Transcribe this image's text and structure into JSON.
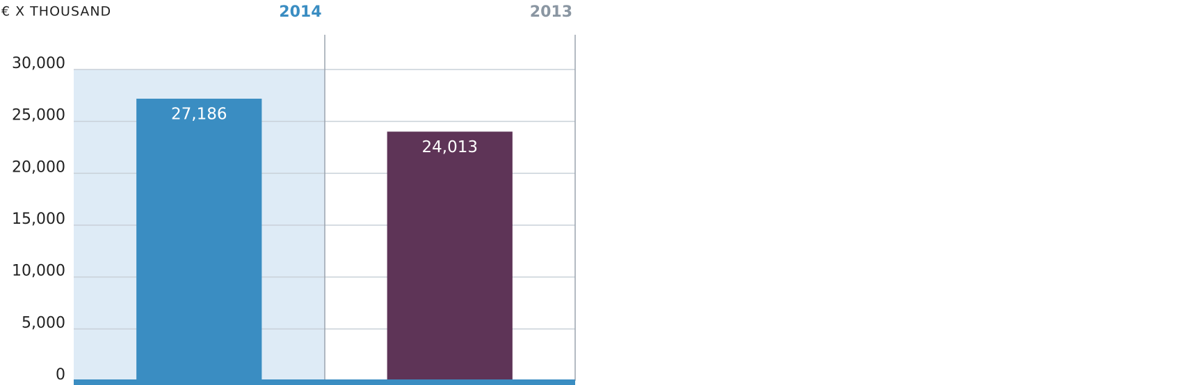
{
  "chart_data": {
    "type": "bar",
    "y_label": "€ X THOUSAND",
    "categories": [
      "2014",
      "2013"
    ],
    "values": [
      27186,
      24013
    ],
    "value_labels": [
      "27,186",
      "24,013"
    ],
    "colors": [
      "#3a8dc2",
      "#5e3457"
    ],
    "ylim": [
      0,
      30000
    ],
    "yticks": [
      0,
      {
        "value": 5000,
        "label": "5,000"
      },
      {
        "value": 10000,
        "label": "10,000"
      },
      {
        "value": 15000,
        "label": "15,000"
      },
      {
        "value": 20000,
        "label": "20,000"
      },
      {
        "value": 25000,
        "label": "25,000"
      },
      {
        "value": 30000,
        "label": "30,000"
      }
    ],
    "grid": true
  }
}
